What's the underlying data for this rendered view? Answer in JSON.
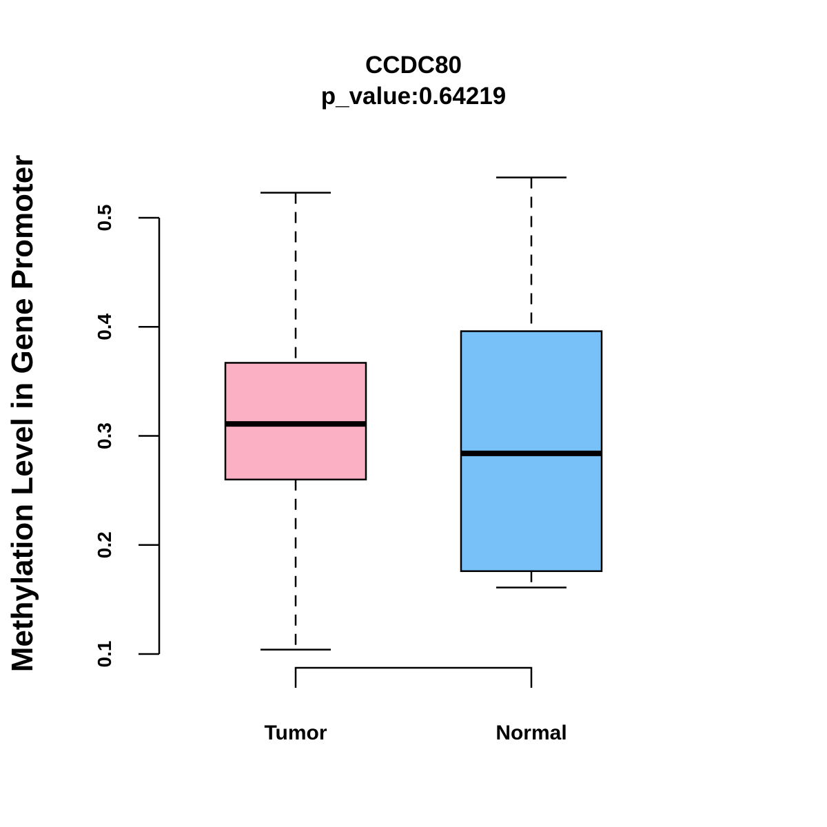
{
  "chart_data": {
    "type": "boxplot",
    "title": "CCDC80",
    "subtitle": "p_value:0.64219",
    "xlabel": "",
    "ylabel": "Methylation Level in Gene Promoter",
    "ylim": [
      0.1,
      0.5
    ],
    "yticks": [
      "0.1",
      "0.2",
      "0.3",
      "0.4",
      "0.5"
    ],
    "grid": false,
    "categories": [
      "Tumor",
      "Normal"
    ],
    "boxes": [
      {
        "name": "Tumor",
        "min": 0.104,
        "q1": 0.26,
        "median": 0.311,
        "q3": 0.367,
        "max": 0.523,
        "color": "#FBB1C3"
      },
      {
        "name": "Normal",
        "min": 0.161,
        "q1": 0.176,
        "median": 0.284,
        "q3": 0.396,
        "max": 0.537,
        "color": "#78C0F8"
      }
    ],
    "bracket": {
      "from": "Tumor",
      "to": "Normal",
      "label": ""
    }
  }
}
